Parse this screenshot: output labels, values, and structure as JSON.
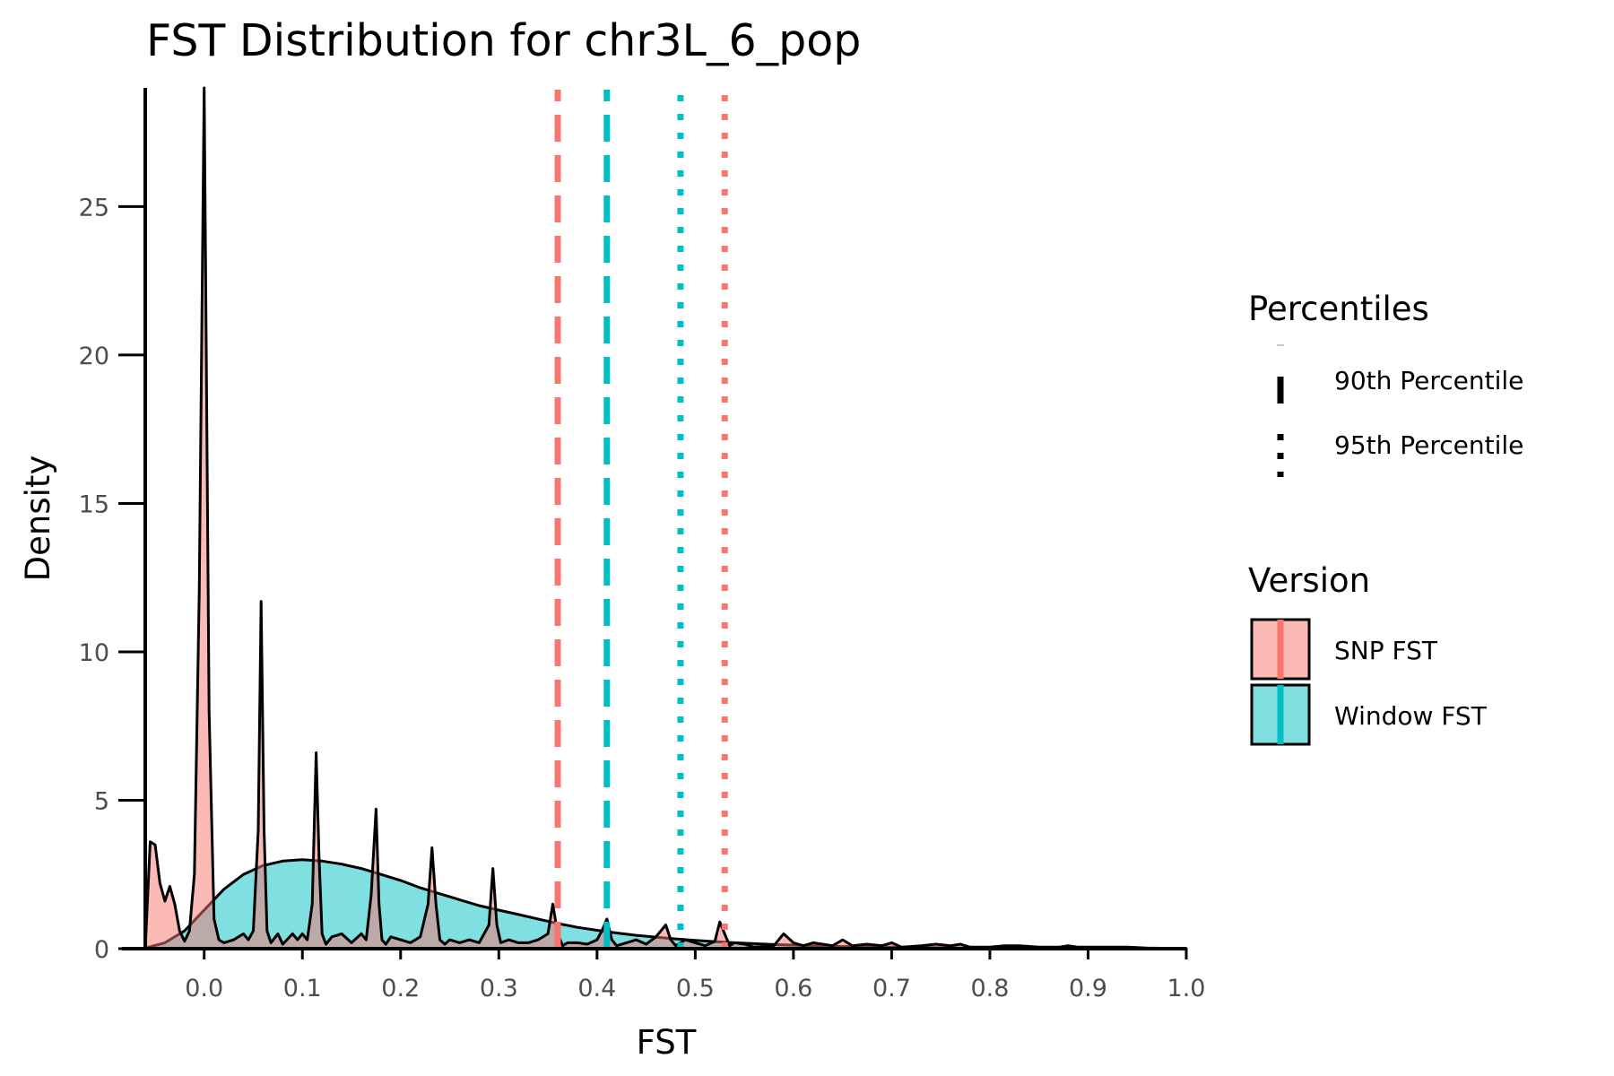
{
  "chart_data": {
    "type": "area",
    "title": "FST Distribution for chr3L_6_pop",
    "xlabel": "FST",
    "ylabel": "Density",
    "xlim": [
      -0.06,
      1.0
    ],
    "ylim": [
      0,
      29
    ],
    "x_ticks": [
      "0.0",
      "0.1",
      "0.2",
      "0.3",
      "0.4",
      "0.5",
      "0.6",
      "0.7",
      "0.8",
      "0.9",
      "1.0"
    ],
    "x_tick_values": [
      0.0,
      0.1,
      0.2,
      0.3,
      0.4,
      0.5,
      0.6,
      0.7,
      0.8,
      0.9,
      1.0
    ],
    "y_ticks": [
      "0",
      "5",
      "10",
      "15",
      "20",
      "25"
    ],
    "y_tick_values": [
      0,
      5,
      10,
      15,
      20,
      25
    ],
    "grid": false,
    "series": [
      {
        "name": "SNP FST",
        "color": "#F8766D",
        "fill": "#F8766D",
        "x": [
          -0.06,
          -0.055,
          -0.05,
          -0.045,
          -0.04,
          -0.035,
          -0.03,
          -0.025,
          -0.02,
          -0.015,
          -0.01,
          -0.005,
          0.0,
          0.005,
          0.01,
          0.015,
          0.02,
          0.03,
          0.04,
          0.045,
          0.05,
          0.055,
          0.058,
          0.061,
          0.064,
          0.068,
          0.075,
          0.08,
          0.09,
          0.095,
          0.1,
          0.105,
          0.11,
          0.114,
          0.117,
          0.12,
          0.124,
          0.13,
          0.14,
          0.15,
          0.16,
          0.165,
          0.17,
          0.175,
          0.178,
          0.181,
          0.185,
          0.19,
          0.2,
          0.21,
          0.22,
          0.228,
          0.232,
          0.236,
          0.24,
          0.245,
          0.25,
          0.26,
          0.27,
          0.28,
          0.29,
          0.294,
          0.298,
          0.302,
          0.31,
          0.32,
          0.33,
          0.34,
          0.35,
          0.355,
          0.36,
          0.365,
          0.37,
          0.38,
          0.39,
          0.4,
          0.405,
          0.41,
          0.415,
          0.42,
          0.43,
          0.44,
          0.45,
          0.46,
          0.47,
          0.475,
          0.48,
          0.49,
          0.5,
          0.51,
          0.52,
          0.525,
          0.53,
          0.535,
          0.54,
          0.55,
          0.56,
          0.58,
          0.59,
          0.6,
          0.61,
          0.62,
          0.64,
          0.65,
          0.66,
          0.675,
          0.69,
          0.7,
          0.71,
          0.73,
          0.745,
          0.76,
          0.77,
          0.78,
          0.8,
          0.815,
          0.83,
          0.85,
          0.87,
          0.88,
          0.89,
          0.92,
          0.94,
          0.96,
          1.0
        ],
        "y": [
          0.0,
          3.6,
          3.5,
          2.2,
          1.6,
          2.1,
          1.5,
          0.6,
          0.25,
          0.6,
          2.5,
          12.0,
          29.0,
          8.0,
          1.0,
          0.3,
          0.2,
          0.3,
          0.5,
          0.3,
          0.6,
          4.0,
          11.7,
          4.0,
          0.6,
          0.2,
          0.5,
          0.15,
          0.5,
          0.3,
          0.5,
          0.3,
          1.5,
          6.6,
          3.0,
          0.5,
          0.15,
          0.4,
          0.5,
          0.2,
          0.5,
          0.3,
          1.8,
          4.7,
          1.5,
          0.3,
          0.15,
          0.4,
          0.3,
          0.2,
          0.4,
          1.5,
          3.4,
          1.5,
          0.3,
          0.15,
          0.3,
          0.2,
          0.3,
          0.2,
          0.8,
          2.7,
          0.8,
          0.2,
          0.3,
          0.2,
          0.2,
          0.3,
          0.5,
          1.5,
          0.5,
          0.1,
          0.2,
          0.2,
          0.15,
          0.3,
          0.6,
          1.0,
          0.3,
          0.1,
          0.2,
          0.3,
          0.15,
          0.4,
          0.8,
          0.3,
          0.1,
          0.3,
          0.2,
          0.1,
          0.25,
          0.9,
          0.5,
          0.1,
          0.2,
          0.15,
          0.05,
          0.1,
          0.5,
          0.2,
          0.1,
          0.2,
          0.1,
          0.3,
          0.1,
          0.15,
          0.1,
          0.2,
          0.05,
          0.1,
          0.15,
          0.1,
          0.15,
          0.05,
          0.05,
          0.1,
          0.1,
          0.05,
          0.05,
          0.1,
          0.05,
          0.05,
          0.05,
          0.02,
          0.0
        ]
      },
      {
        "name": "Window FST",
        "color": "#00BFC4",
        "fill": "#00BFC4",
        "x": [
          -0.06,
          -0.04,
          -0.02,
          0.0,
          0.02,
          0.04,
          0.06,
          0.08,
          0.1,
          0.12,
          0.14,
          0.16,
          0.18,
          0.2,
          0.22,
          0.24,
          0.26,
          0.28,
          0.3,
          0.32,
          0.34,
          0.36,
          0.38,
          0.4,
          0.42,
          0.44,
          0.46,
          0.48,
          0.5,
          0.52,
          0.54,
          0.56,
          0.58,
          0.6,
          0.62,
          0.64,
          0.66,
          0.68,
          0.7,
          0.72,
          0.74,
          0.76,
          0.78,
          0.8,
          0.85,
          0.9,
          0.95,
          1.0
        ],
        "y": [
          0.02,
          0.2,
          0.6,
          1.3,
          2.0,
          2.5,
          2.8,
          2.95,
          3.0,
          2.95,
          2.85,
          2.7,
          2.5,
          2.3,
          2.05,
          1.85,
          1.65,
          1.45,
          1.3,
          1.15,
          1.0,
          0.85,
          0.72,
          0.62,
          0.53,
          0.45,
          0.39,
          0.33,
          0.28,
          0.24,
          0.2,
          0.17,
          0.14,
          0.12,
          0.1,
          0.08,
          0.07,
          0.06,
          0.05,
          0.04,
          0.035,
          0.03,
          0.02,
          0.02,
          0.015,
          0.01,
          0.005,
          0.0
        ]
      }
    ],
    "percentile_lines": [
      {
        "version": "SNP FST",
        "percentile": "90th Percentile",
        "x": 0.36,
        "color": "#F8766D",
        "style": "dashed"
      },
      {
        "version": "Window FST",
        "percentile": "90th Percentile",
        "x": 0.41,
        "color": "#00BFC4",
        "style": "dashed"
      },
      {
        "version": "Window FST",
        "percentile": "95th Percentile",
        "x": 0.485,
        "color": "#00BFC4",
        "style": "dotted"
      },
      {
        "version": "SNP FST",
        "percentile": "95th Percentile",
        "x": 0.53,
        "color": "#F8766D",
        "style": "dotted"
      }
    ],
    "legend": {
      "placement": "right",
      "percentiles_title": "Percentiles",
      "percentiles_items": [
        "90th Percentile",
        "95th Percentile"
      ],
      "version_title": "Version",
      "version_items": [
        "SNP FST",
        "Window FST"
      ]
    }
  }
}
